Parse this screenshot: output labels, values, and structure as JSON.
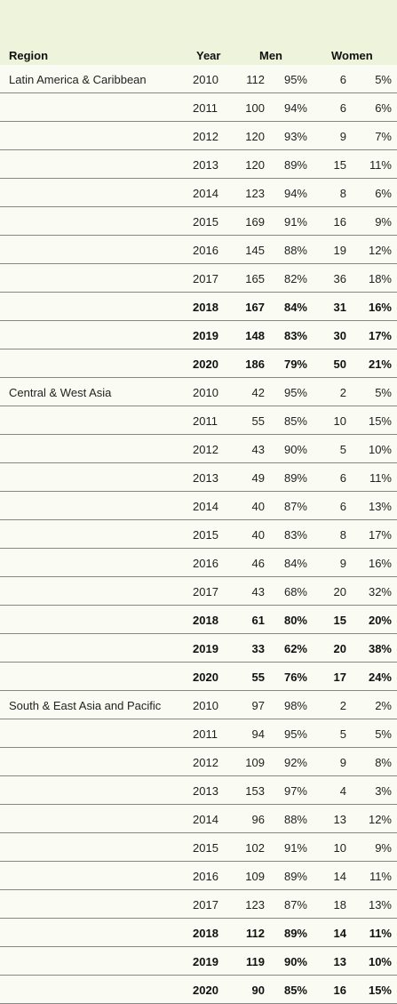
{
  "headers": {
    "region": "Region",
    "year": "Year",
    "men": "Men",
    "women": "Women"
  },
  "groups": [
    {
      "region": "Latin America & Caribbean",
      "rows": [
        {
          "year": "2010",
          "men": "112",
          "men_pct": "95%",
          "women": "6",
          "women_pct": "5%",
          "bold": false
        },
        {
          "year": "2011",
          "men": "100",
          "men_pct": "94%",
          "women": "6",
          "women_pct": "6%",
          "bold": false
        },
        {
          "year": "2012",
          "men": "120",
          "men_pct": "93%",
          "women": "9",
          "women_pct": "7%",
          "bold": false
        },
        {
          "year": "2013",
          "men": "120",
          "men_pct": "89%",
          "women": "15",
          "women_pct": "11%",
          "bold": false
        },
        {
          "year": "2014",
          "men": "123",
          "men_pct": "94%",
          "women": "8",
          "women_pct": "6%",
          "bold": false
        },
        {
          "year": "2015",
          "men": "169",
          "men_pct": "91%",
          "women": "16",
          "women_pct": "9%",
          "bold": false
        },
        {
          "year": "2016",
          "men": "145",
          "men_pct": "88%",
          "women": "19",
          "women_pct": "12%",
          "bold": false
        },
        {
          "year": "2017",
          "men": "165",
          "men_pct": "82%",
          "women": "36",
          "women_pct": "18%",
          "bold": false
        },
        {
          "year": "2018",
          "men": "167",
          "men_pct": "84%",
          "women": "31",
          "women_pct": "16%",
          "bold": true
        },
        {
          "year": "2019",
          "men": "148",
          "men_pct": "83%",
          "women": "30",
          "women_pct": "17%",
          "bold": true
        },
        {
          "year": "2020",
          "men": "186",
          "men_pct": "79%",
          "women": "50",
          "women_pct": "21%",
          "bold": true
        }
      ]
    },
    {
      "region": "Central & West Asia",
      "rows": [
        {
          "year": "2010",
          "men": "42",
          "men_pct": "95%",
          "women": "2",
          "women_pct": "5%",
          "bold": false
        },
        {
          "year": "2011",
          "men": "55",
          "men_pct": "85%",
          "women": "10",
          "women_pct": "15%",
          "bold": false
        },
        {
          "year": "2012",
          "men": "43",
          "men_pct": "90%",
          "women": "5",
          "women_pct": "10%",
          "bold": false
        },
        {
          "year": "2013",
          "men": "49",
          "men_pct": "89%",
          "women": "6",
          "women_pct": "11%",
          "bold": false
        },
        {
          "year": "2014",
          "men": "40",
          "men_pct": "87%",
          "women": "6",
          "women_pct": "13%",
          "bold": false
        },
        {
          "year": "2015",
          "men": "40",
          "men_pct": "83%",
          "women": "8",
          "women_pct": "17%",
          "bold": false
        },
        {
          "year": "2016",
          "men": "46",
          "men_pct": "84%",
          "women": "9",
          "women_pct": "16%",
          "bold": false
        },
        {
          "year": "2017",
          "men": "43",
          "men_pct": "68%",
          "women": "20",
          "women_pct": "32%",
          "bold": false
        },
        {
          "year": "2018",
          "men": "61",
          "men_pct": "80%",
          "women": "15",
          "women_pct": "20%",
          "bold": true
        },
        {
          "year": "2019",
          "men": "33",
          "men_pct": "62%",
          "women": "20",
          "women_pct": "38%",
          "bold": true
        },
        {
          "year": "2020",
          "men": "55",
          "men_pct": "76%",
          "women": "17",
          "women_pct": "24%",
          "bold": true
        }
      ]
    },
    {
      "region": "South & East Asia and Pacific",
      "rows": [
        {
          "year": "2010",
          "men": "97",
          "men_pct": "98%",
          "women": "2",
          "women_pct": "2%",
          "bold": false
        },
        {
          "year": "2011",
          "men": "94",
          "men_pct": "95%",
          "women": "5",
          "women_pct": "5%",
          "bold": false
        },
        {
          "year": "2012",
          "men": "109",
          "men_pct": "92%",
          "women": "9",
          "women_pct": "8%",
          "bold": false
        },
        {
          "year": "2013",
          "men": "153",
          "men_pct": "97%",
          "women": "4",
          "women_pct": "3%",
          "bold": false
        },
        {
          "year": "2014",
          "men": "96",
          "men_pct": "88%",
          "women": "13",
          "women_pct": "12%",
          "bold": false
        },
        {
          "year": "2015",
          "men": "102",
          "men_pct": "91%",
          "women": "10",
          "women_pct": "9%",
          "bold": false
        },
        {
          "year": "2016",
          "men": "109",
          "men_pct": "89%",
          "women": "14",
          "women_pct": "11%",
          "bold": false
        },
        {
          "year": "2017",
          "men": "123",
          "men_pct": "87%",
          "women": "18",
          "women_pct": "13%",
          "bold": false
        },
        {
          "year": "2018",
          "men": "112",
          "men_pct": "89%",
          "women": "14",
          "women_pct": "11%",
          "bold": true
        },
        {
          "year": "2019",
          "men": "119",
          "men_pct": "90%",
          "women": "13",
          "women_pct": "10%",
          "bold": true
        },
        {
          "year": "2020",
          "men": "90",
          "men_pct": "85%",
          "women": "16",
          "women_pct": "15%",
          "bold": true
        }
      ]
    }
  ]
}
